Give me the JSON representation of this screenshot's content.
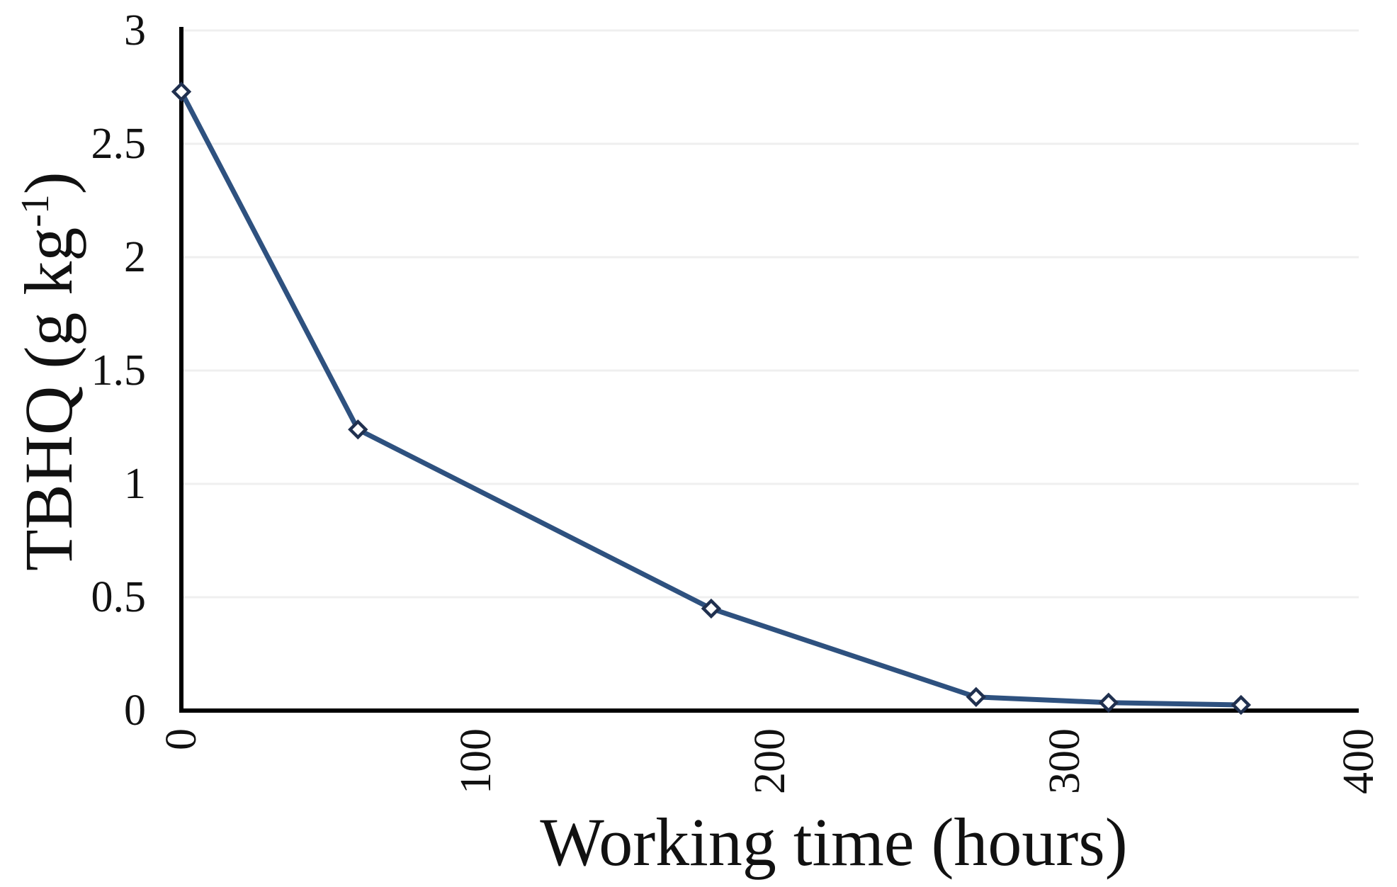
{
  "chart_data": {
    "type": "line",
    "title": "",
    "xlabel": "Working time (hours)",
    "ylabel": "TBHQ (g kg⁻¹)",
    "ylabel_parts": {
      "main": "TBHQ (g kg",
      "sup": "-1",
      "close": ")"
    },
    "series": [
      {
        "name": "TBHQ",
        "marker": "open-diamond",
        "x": [
          0,
          60,
          180,
          270,
          315,
          360
        ],
        "y": [
          2.73,
          1.24,
          0.45,
          0.06,
          0.035,
          0.025
        ]
      }
    ],
    "xticks": [
      0,
      100,
      200,
      300,
      400
    ],
    "xtick_labels": [
      "0",
      "100",
      "200",
      "300",
      "400"
    ],
    "yticks": [
      0,
      0.5,
      1,
      1.5,
      2,
      2.5,
      3
    ],
    "ytick_labels": [
      "0",
      "0.5",
      "1",
      "1.5",
      "2",
      "2.5",
      "3"
    ],
    "xlim": [
      0,
      400
    ],
    "ylim": [
      0,
      3
    ],
    "grid": {
      "horizontal": true,
      "step": 0.5
    },
    "legend": {
      "visible": false
    },
    "x_tick_label_rotation_deg": -90,
    "colors": {
      "line": "#2e517f",
      "marker_stroke": "#20304f",
      "marker_fill": "#ffffff",
      "grid": "#efefef",
      "axis": "#000000",
      "text": "#111111"
    }
  }
}
